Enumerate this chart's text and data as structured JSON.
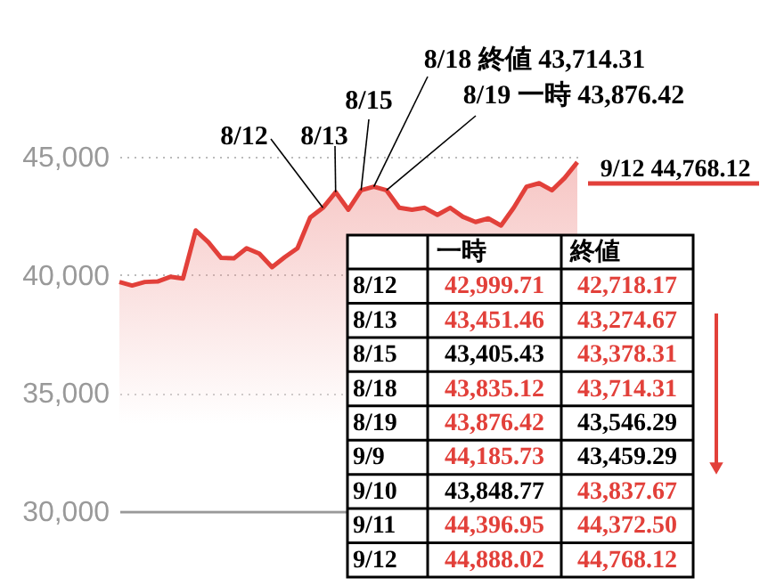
{
  "chart_data": {
    "type": "area",
    "categories": [
      null,
      null,
      null,
      null,
      null,
      null,
      null,
      null,
      null,
      null,
      null,
      null,
      null,
      null,
      null,
      null,
      null,
      null,
      null,
      null,
      null,
      null,
      null,
      null,
      null,
      null,
      null,
      null,
      null,
      null,
      null,
      null,
      null,
      null,
      null,
      null,
      null
    ],
    "series": [
      {
        "color": "#e2403a",
        "values": [
          39700,
          39550,
          39700,
          39720,
          39920,
          39850,
          41880,
          41380,
          40720,
          40700,
          41130,
          40900,
          40330,
          40750,
          41130,
          42430,
          42840,
          43500,
          42760,
          43580,
          43730,
          43580,
          42840,
          42760,
          42840,
          42540,
          42840,
          42460,
          42240,
          42390,
          42090,
          42840,
          43730,
          43880,
          43580,
          44100,
          44770
        ]
      }
    ],
    "ylim": [
      30000,
      45000
    ],
    "yticks": [
      {
        "value": 30000,
        "label": "30,000"
      },
      {
        "value": 35000,
        "label": "35,000"
      },
      {
        "value": 40000,
        "label": "40,000"
      },
      {
        "value": 45000,
        "label": "45,000"
      }
    ],
    "grid": "y",
    "tick_labels": "y",
    "annotations": [
      "8/12",
      "8/13",
      "8/15",
      "8/18 終値 43,714.31",
      "8/19 一時 43,876.42",
      "9/12 44,768.12",
      "一時",
      "終値",
      "8/12",
      "42,999.71",
      "42,718.17",
      "8/13",
      "43,451.46",
      "43,274.67",
      "8/15",
      "43,405.43",
      "43,378.31",
      "8/18",
      "43,835.12",
      "43,714.31",
      "8/19",
      "43,876.42",
      "43,546.29",
      "9/9",
      "44,185.73",
      "43,459.29",
      "9/10",
      "43,848.77",
      "43,837.67",
      "9/11",
      "44,396.95",
      "44,372.50",
      "9/12",
      "44,888.02",
      "44,768.12"
    ]
  }
}
